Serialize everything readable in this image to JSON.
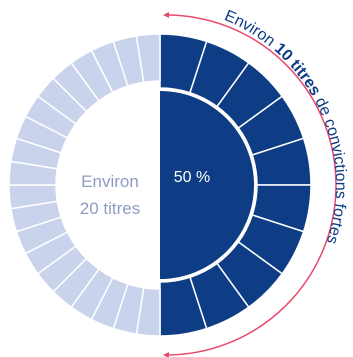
{
  "center_label": "50 %",
  "left_label": [
    "Environ",
    "20 titres"
  ],
  "arc_label": [
    "Environ ",
    "10 titres",
    " de convictions fortes"
  ]
}
